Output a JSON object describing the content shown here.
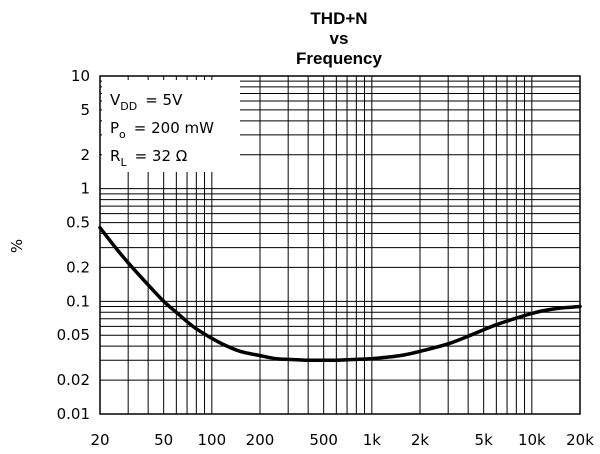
{
  "chart_data": {
    "type": "line",
    "title_lines": [
      "THD+N",
      "vs",
      "Frequency"
    ],
    "xlabel": "",
    "ylabel": "%",
    "x_scale": "log",
    "y_scale": "log",
    "xlim": [
      20,
      20000
    ],
    "ylim": [
      0.01,
      10
    ],
    "grid": true,
    "x_ticks": [
      {
        "value": 20,
        "label": "20"
      },
      {
        "value": 50,
        "label": "50"
      },
      {
        "value": 100,
        "label": "100"
      },
      {
        "value": 200,
        "label": "200"
      },
      {
        "value": 500,
        "label": "500"
      },
      {
        "value": 1000,
        "label": "1k"
      },
      {
        "value": 2000,
        "label": "2k"
      },
      {
        "value": 5000,
        "label": "5k"
      },
      {
        "value": 10000,
        "label": "10k"
      },
      {
        "value": 20000,
        "label": "20k"
      }
    ],
    "y_ticks": [
      {
        "value": 10,
        "label": "10"
      },
      {
        "value": 5,
        "label": "5"
      },
      {
        "value": 2,
        "label": "2"
      },
      {
        "value": 1,
        "label": "1"
      },
      {
        "value": 0.5,
        "label": "0.5"
      },
      {
        "value": 0.2,
        "label": "0.2"
      },
      {
        "value": 0.1,
        "label": "0.1"
      },
      {
        "value": 0.05,
        "label": "0.05"
      },
      {
        "value": 0.02,
        "label": "0.02"
      },
      {
        "value": 0.01,
        "label": "0.01"
      }
    ],
    "annotations": [
      {
        "main": "V",
        "sub": "DD",
        "rest": "= 5V"
      },
      {
        "main": "P",
        "sub": "o",
        "rest": "= 200 mW"
      },
      {
        "main": "R",
        "sub": "L",
        "rest": "= 32 Ω"
      }
    ],
    "series": [
      {
        "x": [
          20,
          25,
          30,
          40,
          50,
          60,
          70,
          80,
          100,
          120,
          150,
          200,
          250,
          300,
          400,
          500,
          600,
          800,
          1000,
          1500,
          2000,
          3000,
          4000,
          5000,
          6000,
          8000,
          10000,
          12000,
          15000,
          20000
        ],
        "y": [
          0.45,
          0.3,
          0.22,
          0.14,
          0.1,
          0.08,
          0.066,
          0.057,
          0.047,
          0.041,
          0.036,
          0.033,
          0.031,
          0.0305,
          0.03,
          0.03,
          0.03,
          0.0305,
          0.031,
          0.033,
          0.036,
          0.042,
          0.049,
          0.056,
          0.062,
          0.071,
          0.078,
          0.083,
          0.087,
          0.09
        ]
      }
    ],
    "line_color": "#000000"
  }
}
